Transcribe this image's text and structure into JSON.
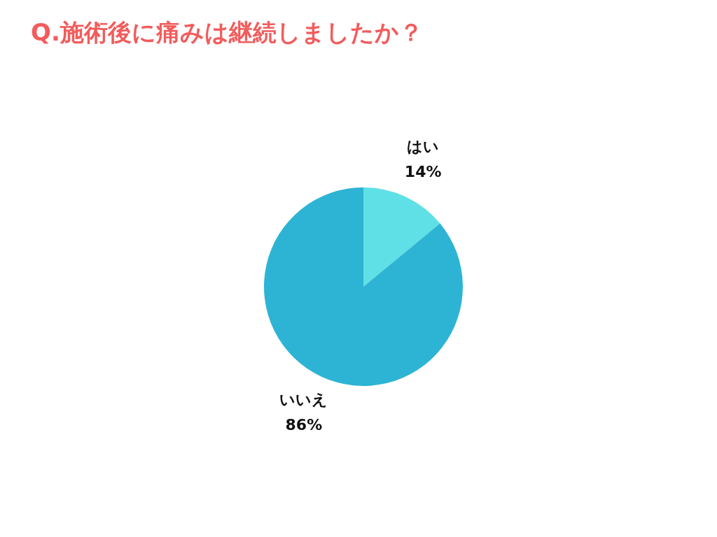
{
  "chart_data": {
    "type": "pie",
    "title": "Q.施術後に痛みは継続しましたか？",
    "categories": [
      "はい",
      "いいえ"
    ],
    "values": [
      14,
      86
    ],
    "value_labels": [
      "14%",
      "86%"
    ],
    "colors": [
      "#5ee0e6",
      "#2db4d4"
    ]
  }
}
